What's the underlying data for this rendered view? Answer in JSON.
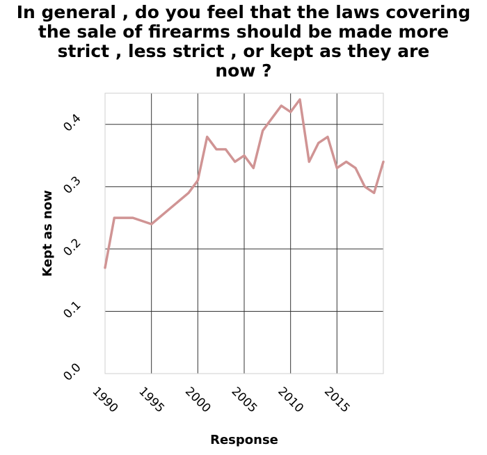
{
  "chart_data": {
    "type": "line",
    "title_lines": [
      "In general , do you feel that the laws covering",
      "the sale of firearms should be made more",
      "strict , less strict , or kept as they are",
      "now ?"
    ],
    "xlabel": "Response",
    "ylabel": "Kept as now",
    "xlim": [
      1990,
      2020
    ],
    "ylim": [
      0,
      0.45
    ],
    "x_ticks": [
      1990,
      1995,
      2000,
      2005,
      2010,
      2015
    ],
    "x_tick_labels": [
      "1990",
      "1995",
      "2000",
      "2005",
      "2010",
      "2015"
    ],
    "y_ticks": [
      0,
      0.1,
      0.2,
      0.3,
      0.4
    ],
    "y_tick_labels": [
      "0.0",
      "0.1",
      "0.2",
      "0.3",
      "0.4"
    ],
    "grid": true,
    "line_color": "#d09494",
    "series": [
      {
        "x": [
          1990,
          1991,
          1993,
          1995,
          1999,
          2000,
          2001,
          2002,
          2003,
          2004,
          2005,
          2006,
          2007,
          2008,
          2009,
          2010,
          2011,
          2012,
          2013,
          2014,
          2015,
          2016,
          2017,
          2018,
          2019,
          2020
        ],
        "values": [
          0.17,
          0.25,
          0.25,
          0.24,
          0.29,
          0.31,
          0.38,
          0.36,
          0.36,
          0.34,
          0.35,
          0.33,
          0.39,
          0.41,
          0.43,
          0.42,
          0.44,
          0.34,
          0.37,
          0.38,
          0.33,
          0.34,
          0.33,
          0.3,
          0.29,
          0.34
        ]
      }
    ]
  }
}
